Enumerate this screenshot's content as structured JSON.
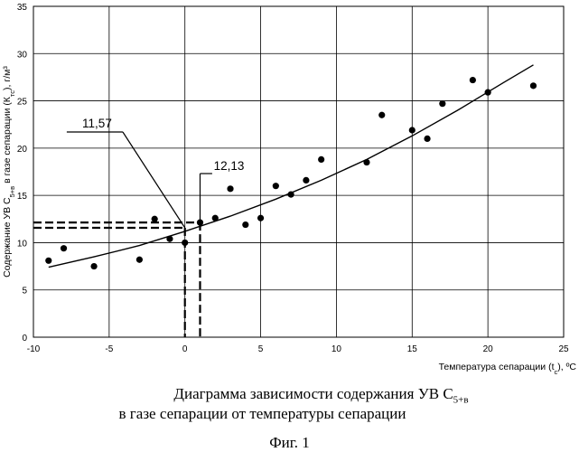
{
  "chart_data": {
    "type": "scatter",
    "xlabel": "Температура сепарации (t",
    "xlabel_sub": "c",
    "xlabel_tail": "), ºС",
    "ylabel": "Содержание УВ С",
    "ylabel_sub": "5+в",
    "ylabel_mid": " в газе сепарации (К",
    "ylabel_sub2": "тс",
    "ylabel_tail": "), г/м³",
    "xlim": [
      -10,
      25
    ],
    "ylim": [
      0,
      35
    ],
    "xticks": [
      -10,
      -5,
      0,
      5,
      10,
      15,
      20,
      25
    ],
    "yticks": [
      0,
      5,
      10,
      15,
      20,
      25,
      30,
      35
    ],
    "grid": "vertical-and-horizontal",
    "points": [
      {
        "x": -9,
        "y": 8.1
      },
      {
        "x": -8,
        "y": 9.4
      },
      {
        "x": -6,
        "y": 7.5
      },
      {
        "x": -3,
        "y": 8.2
      },
      {
        "x": -2,
        "y": 12.5
      },
      {
        "x": -1,
        "y": 10.4
      },
      {
        "x": 0,
        "y": 10.0
      },
      {
        "x": 1,
        "y": 12.13
      },
      {
        "x": 2,
        "y": 12.6
      },
      {
        "x": 3,
        "y": 15.7
      },
      {
        "x": 4,
        "y": 11.9
      },
      {
        "x": 5,
        "y": 12.6
      },
      {
        "x": 6,
        "y": 16.0
      },
      {
        "x": 7,
        "y": 15.1
      },
      {
        "x": 8,
        "y": 16.6
      },
      {
        "x": 9,
        "y": 18.8
      },
      {
        "x": 12,
        "y": 18.5
      },
      {
        "x": 13,
        "y": 23.5
      },
      {
        "x": 15,
        "y": 21.9
      },
      {
        "x": 16,
        "y": 21.0
      },
      {
        "x": 17,
        "y": 24.7
      },
      {
        "x": 19,
        "y": 27.2
      },
      {
        "x": 20,
        "y": 25.9
      },
      {
        "x": 23,
        "y": 26.6
      }
    ],
    "trend": {
      "x": [
        -9,
        -6,
        -3,
        0,
        3,
        6,
        9,
        12,
        15,
        18,
        21,
        23
      ],
      "y": [
        7.4,
        8.5,
        9.7,
        11.2,
        12.8,
        14.6,
        16.6,
        18.8,
        21.3,
        24.0,
        26.9,
        28.8
      ]
    },
    "reference_lines": [
      {
        "x": 0,
        "y": 11.57,
        "label": "11,57"
      },
      {
        "x": 1,
        "y": 12.13,
        "label": "12,13"
      }
    ]
  },
  "caption": {
    "line1_main": "Диаграмма зависимости содержания УВ С",
    "line1_sub": "5+в",
    "line2": "в газе сепарации от температуры сепарации",
    "line3": "Фиг. 1"
  }
}
